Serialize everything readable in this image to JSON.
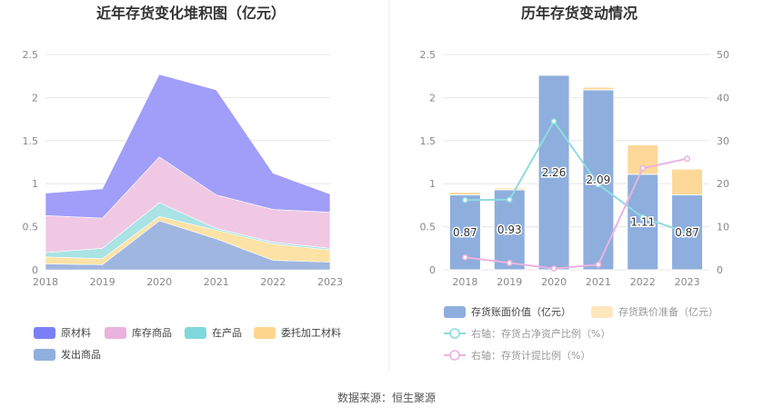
{
  "chart_data": [
    {
      "type": "area",
      "stacked": true,
      "title": "近年存货变化堆积图（亿元）",
      "categories": [
        "2018",
        "2019",
        "2020",
        "2021",
        "2022",
        "2023"
      ],
      "ylim": [
        0,
        2.5
      ],
      "yticks": [
        "0",
        "0.5",
        "1",
        "1.5",
        "2",
        "2.5"
      ],
      "grid": true,
      "series": [
        {
          "name": "发出商品",
          "color": "#9fb6e0",
          "values": [
            0.07,
            0.06,
            0.57,
            0.36,
            0.11,
            0.09
          ]
        },
        {
          "name": "委托加工材料",
          "color": "#fde2a6",
          "values": [
            0.08,
            0.07,
            0.05,
            0.1,
            0.19,
            0.14
          ]
        },
        {
          "name": "在产品",
          "color": "#a9e3e4",
          "values": [
            0.05,
            0.12,
            0.16,
            0.02,
            0.02,
            0.02
          ]
        },
        {
          "name": "库存商品",
          "color": "#f0c8e4",
          "values": [
            0.43,
            0.35,
            0.53,
            0.39,
            0.38,
            0.42
          ]
        },
        {
          "name": "原材料",
          "color": "#a09ef8",
          "values": [
            0.26,
            0.34,
            0.96,
            1.22,
            0.42,
            0.21
          ]
        }
      ],
      "legend": [
        {
          "name": "原材料",
          "color": "#7b7ff5"
        },
        {
          "name": "库存商品",
          "color": "#e9b2df"
        },
        {
          "name": "在产品",
          "color": "#7fd8dc"
        },
        {
          "name": "委托加工材料",
          "color": "#fdd68e"
        },
        {
          "name": "发出商品",
          "color": "#8fb0de"
        }
      ]
    },
    {
      "type": "bar",
      "stacked": true,
      "title": "历年存货变动情况",
      "categories": [
        "2018",
        "2019",
        "2020",
        "2021",
        "2022",
        "2023"
      ],
      "ylim": [
        0,
        2.5
      ],
      "yticks": [
        "0",
        "0.5",
        "1",
        "1.5",
        "2",
        "2.5"
      ],
      "y2lim": [
        0,
        50
      ],
      "y2ticks": [
        "0",
        "10",
        "20",
        "30",
        "40",
        "50"
      ],
      "grid": true,
      "series": [
        {
          "name": "存货账面价值（亿元）",
          "type": "bar",
          "axis": "left",
          "color": "#8eaedd",
          "values": [
            0.87,
            0.93,
            2.26,
            2.09,
            1.11,
            0.87
          ],
          "labels": [
            "0.87",
            "0.93",
            "2.26",
            "2.09",
            "1.11",
            "0.87"
          ]
        },
        {
          "name": "存货跌价准备（亿元）",
          "type": "bar",
          "axis": "left",
          "color": "#fdd898",
          "values": [
            0.03,
            0.02,
            0.01,
            0.03,
            0.34,
            0.3
          ]
        },
        {
          "name": "右轴：存货占净资产比例（%）",
          "type": "line",
          "axis": "right",
          "color": "#8fdbe0",
          "values": [
            16.2,
            16.3,
            34.5,
            19.8,
            12.2,
            8.6
          ]
        },
        {
          "name": "右轴：存货计提比例（%）",
          "type": "line",
          "axis": "right",
          "color": "#eab3df",
          "values": [
            2.9,
            1.6,
            0.3,
            1.2,
            23.6,
            25.8
          ]
        }
      ],
      "legend_texts": [
        "存货账面价值（亿元）",
        "存货跌价准备（亿元）",
        "右轴：存货占净资产比例（%）",
        "右轴：存货计提比例（%）"
      ]
    }
  ],
  "source": "数据来源：恒生聚源"
}
